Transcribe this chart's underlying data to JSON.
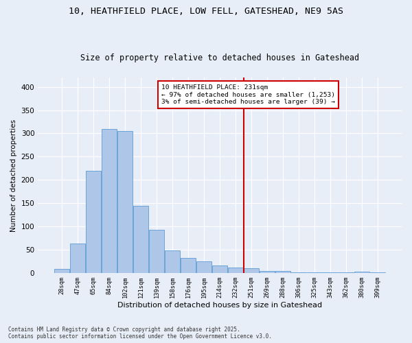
{
  "title_line1": "10, HEATHFIELD PLACE, LOW FELL, GATESHEAD, NE9 5AS",
  "title_line2": "Size of property relative to detached houses in Gateshead",
  "xlabel": "Distribution of detached houses by size in Gateshead",
  "ylabel": "Number of detached properties",
  "categories": [
    "28sqm",
    "47sqm",
    "65sqm",
    "84sqm",
    "102sqm",
    "121sqm",
    "139sqm",
    "158sqm",
    "176sqm",
    "195sqm",
    "214sqm",
    "232sqm",
    "251sqm",
    "269sqm",
    "288sqm",
    "306sqm",
    "325sqm",
    "343sqm",
    "362sqm",
    "380sqm",
    "399sqm"
  ],
  "values": [
    9,
    63,
    220,
    310,
    305,
    144,
    93,
    49,
    33,
    25,
    16,
    12,
    11,
    4,
    5,
    2,
    1,
    2,
    1,
    3,
    2
  ],
  "bar_color": "#aec6e8",
  "bar_edge_color": "#5b9bd5",
  "background_color": "#e8eef8",
  "vline_color": "#cc0000",
  "annotation_text": "10 HEATHFIELD PLACE: 231sqm\n← 97% of detached houses are smaller (1,253)\n3% of semi-detached houses are larger (39) →",
  "annotation_box_color": "#cc0000",
  "ylim": [
    0,
    420
  ],
  "yticks": [
    0,
    50,
    100,
    150,
    200,
    250,
    300,
    350,
    400
  ],
  "footer": "Contains HM Land Registry data © Crown copyright and database right 2025.\nContains public sector information licensed under the Open Government Licence v3.0.",
  "grid_color": "#ffffff",
  "title_fontsize": 9.5,
  "subtitle_fontsize": 8.5
}
